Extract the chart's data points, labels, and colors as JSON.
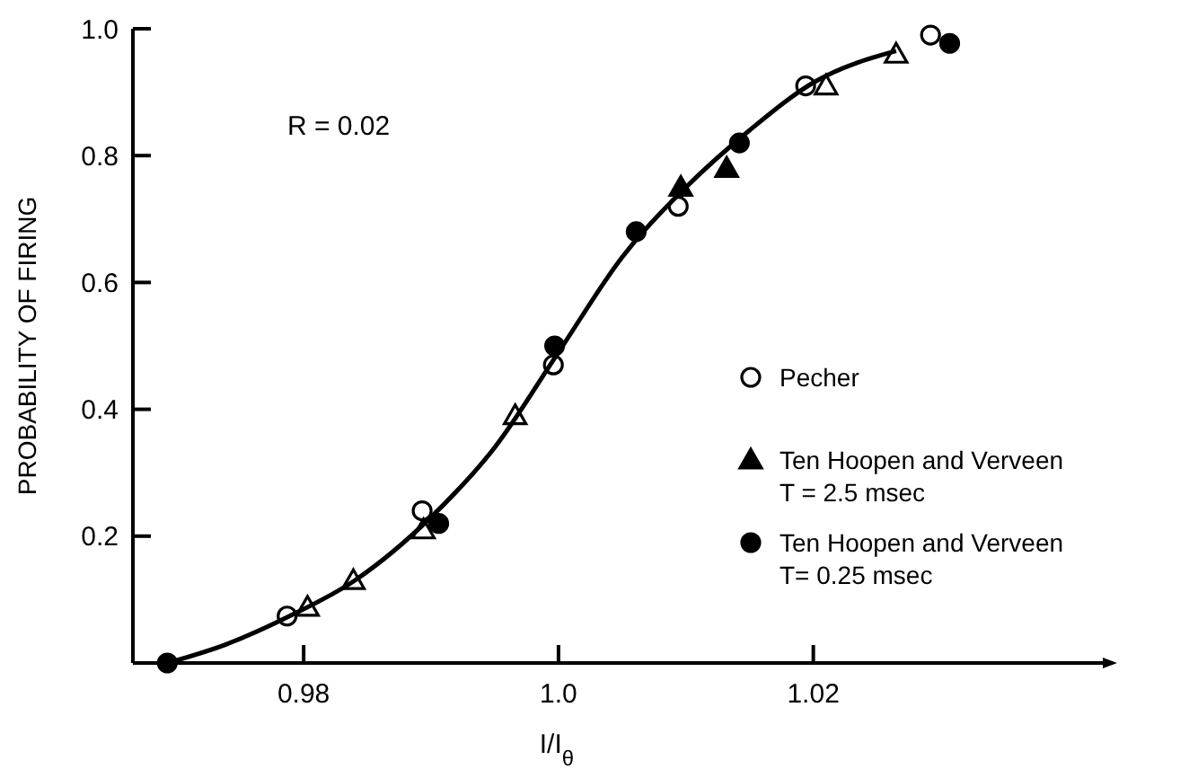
{
  "chart_data": {
    "type": "scatter",
    "xlabel": "I/I$_{θ}$",
    "ylabel": "PROBABILITY OF FIRING",
    "xlim": [
      0.9666,
      1.043
    ],
    "ylim": [
      0,
      1.0
    ],
    "xticks": [
      0.98,
      {
        "value": 1.0,
        "label": "1.0"
      },
      1.02
    ],
    "yticks": [
      0.2,
      0.4,
      0.6,
      0.8,
      {
        "value": 1.0,
        "label": "1.0"
      }
    ],
    "grid": false,
    "legend": "right",
    "annotations": [
      "R = 0.02"
    ],
    "series": [
      {
        "name": "Pecher",
        "marker": "circle",
        "color": "#ffffff",
        "x": [
          0.9787,
          0.9893,
          0.9996,
          1.0094,
          1.0194,
          1.0292
        ],
        "values": [
          0.074,
          0.24,
          0.47,
          0.72,
          0.91,
          0.99
        ]
      },
      {
        "name": "Ten Hoopen and Verveen\nT = 2.5 msec",
        "marker": "triangle",
        "color": "#000000",
        "x": [
          1.0096,
          1.0132
        ],
        "values": [
          0.75,
          0.78
        ]
      },
      {
        "name": "Ten Hoopen and Verveen\nT= 0.25 msec",
        "marker": "circle",
        "color": "#000000",
        "x": [
          0.9693,
          0.9906,
          0.9997,
          1.0061,
          1.0142,
          1.0307
        ],
        "values": [
          0.0,
          0.22,
          0.5,
          0.68,
          0.82,
          0.977
        ]
      },
      {
        "marker": "triangle",
        "color": "#ffffff",
        "x": [
          0.9803,
          0.9839,
          0.9894,
          0.9966,
          1.021,
          1.0265
        ],
        "values": [
          0.088,
          0.13,
          0.21,
          0.39,
          0.91,
          0.96
        ]
      },
      {
        "type": "line",
        "color": "#000000",
        "x": [
          0.9693,
          0.974,
          0.979,
          0.984,
          0.99,
          0.995,
          1.0,
          1.005,
          1.01,
          1.015,
          1.02,
          1.0265
        ],
        "values": [
          0.0,
          0.03,
          0.075,
          0.13,
          0.23,
          0.34,
          0.49,
          0.64,
          0.75,
          0.84,
          0.915,
          0.965
        ]
      }
    ]
  }
}
